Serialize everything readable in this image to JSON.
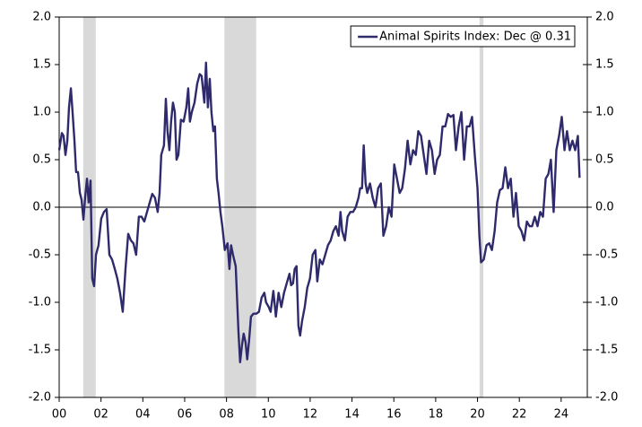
{
  "chart_data": {
    "type": "line",
    "x": [
      2000.0,
      2000.13,
      2000.21,
      2000.3,
      2000.39,
      2000.47,
      2000.56,
      2000.64,
      2000.73,
      2000.81,
      2000.9,
      2000.99,
      2001.07,
      2001.16,
      2001.24,
      2001.33,
      2001.41,
      2001.5,
      2001.58,
      2001.67,
      2001.76,
      2001.88,
      2002.01,
      2002.14,
      2002.27,
      2002.4,
      2002.53,
      2002.66,
      2002.78,
      2002.91,
      2003.04,
      2003.17,
      2003.3,
      2003.43,
      2003.55,
      2003.68,
      2003.81,
      2003.94,
      2004.07,
      2004.2,
      2004.33,
      2004.45,
      2004.58,
      2004.71,
      2004.8,
      2004.88,
      2005.01,
      2005.1,
      2005.18,
      2005.27,
      2005.35,
      2005.44,
      2005.53,
      2005.61,
      2005.7,
      2005.82,
      2005.95,
      2006.08,
      2006.17,
      2006.25,
      2006.34,
      2006.47,
      2006.6,
      2006.72,
      2006.81,
      2006.94,
      2007.02,
      2007.11,
      2007.2,
      2007.28,
      2007.37,
      2007.45,
      2007.54,
      2007.62,
      2007.71,
      2007.8,
      2007.92,
      2008.05,
      2008.14,
      2008.22,
      2008.31,
      2008.44,
      2008.57,
      2008.65,
      2008.74,
      2008.82,
      2008.91,
      2008.99,
      2009.08,
      2009.17,
      2009.29,
      2009.42,
      2009.55,
      2009.68,
      2009.81,
      2009.89,
      2010.02,
      2010.11,
      2010.24,
      2010.36,
      2010.49,
      2010.62,
      2010.75,
      2010.88,
      2011.01,
      2011.09,
      2011.18,
      2011.26,
      2011.35,
      2011.44,
      2011.52,
      2011.61,
      2011.74,
      2011.86,
      2011.99,
      2012.12,
      2012.25,
      2012.34,
      2012.46,
      2012.59,
      2012.72,
      2012.85,
      2012.98,
      2013.11,
      2013.23,
      2013.36,
      2013.45,
      2013.53,
      2013.66,
      2013.79,
      2013.92,
      2014.05,
      2014.18,
      2014.31,
      2014.39,
      2014.48,
      2014.56,
      2014.65,
      2014.73,
      2014.86,
      2014.99,
      2015.12,
      2015.25,
      2015.38,
      2015.5,
      2015.63,
      2015.76,
      2015.89,
      2016.02,
      2016.15,
      2016.28,
      2016.4,
      2016.53,
      2016.66,
      2016.79,
      2016.92,
      2017.05,
      2017.17,
      2017.3,
      2017.43,
      2017.56,
      2017.69,
      2017.82,
      2017.95,
      2018.07,
      2018.2,
      2018.33,
      2018.46,
      2018.59,
      2018.72,
      2018.85,
      2018.97,
      2019.1,
      2019.23,
      2019.36,
      2019.49,
      2019.62,
      2019.74,
      2019.87,
      2020.0,
      2020.09,
      2020.17,
      2020.3,
      2020.43,
      2020.56,
      2020.69,
      2020.82,
      2020.94,
      2021.07,
      2021.2,
      2021.33,
      2021.46,
      2021.59,
      2021.72,
      2021.84,
      2021.97,
      2022.1,
      2022.23,
      2022.36,
      2022.49,
      2022.61,
      2022.74,
      2022.87,
      2023.0,
      2023.13,
      2023.26,
      2023.39,
      2023.51,
      2023.64,
      2023.77,
      2023.9,
      2024.03,
      2024.16,
      2024.28,
      2024.41,
      2024.54,
      2024.67,
      2024.8,
      2024.88
    ],
    "series": [
      {
        "name": "Animal Spirits Index: Dec @ 0.31",
        "color": "#2e2a6b",
        "values": [
          0.6,
          0.78,
          0.75,
          0.55,
          0.7,
          1.05,
          1.25,
          1.0,
          0.7,
          0.37,
          0.37,
          0.15,
          0.08,
          -0.13,
          0.1,
          0.3,
          0.05,
          0.28,
          -0.75,
          -0.83,
          -0.5,
          -0.4,
          -0.12,
          -0.05,
          -0.02,
          -0.5,
          -0.55,
          -0.65,
          -0.75,
          -0.9,
          -1.1,
          -0.65,
          -0.28,
          -0.35,
          -0.38,
          -0.5,
          -0.1,
          -0.1,
          -0.15,
          -0.05,
          0.05,
          0.14,
          0.1,
          -0.05,
          0.15,
          0.55,
          0.65,
          1.14,
          0.8,
          0.6,
          0.9,
          1.1,
          1.0,
          0.5,
          0.55,
          0.92,
          0.9,
          1.05,
          1.25,
          0.9,
          1.0,
          1.1,
          1.3,
          1.4,
          1.38,
          1.1,
          1.52,
          1.05,
          1.35,
          1.0,
          0.8,
          0.85,
          0.3,
          0.15,
          -0.05,
          -0.2,
          -0.45,
          -0.38,
          -0.65,
          -0.4,
          -0.5,
          -0.62,
          -1.3,
          -1.63,
          -1.45,
          -1.33,
          -1.42,
          -1.6,
          -1.4,
          -1.15,
          -1.12,
          -1.12,
          -1.1,
          -0.95,
          -0.9,
          -1.0,
          -1.05,
          -1.1,
          -0.88,
          -1.15,
          -0.9,
          -1.05,
          -0.9,
          -0.8,
          -0.7,
          -0.82,
          -0.8,
          -0.65,
          -0.62,
          -1.25,
          -1.35,
          -1.2,
          -1.05,
          -0.85,
          -0.75,
          -0.5,
          -0.45,
          -0.78,
          -0.55,
          -0.6,
          -0.5,
          -0.4,
          -0.35,
          -0.25,
          -0.2,
          -0.3,
          -0.05,
          -0.25,
          -0.35,
          -0.1,
          -0.05,
          -0.05,
          0.0,
          0.1,
          0.2,
          0.2,
          0.65,
          0.25,
          0.15,
          0.25,
          0.1,
          0.0,
          0.2,
          0.25,
          -0.3,
          -0.2,
          0.0,
          -0.1,
          0.45,
          0.3,
          0.15,
          0.2,
          0.4,
          0.7,
          0.45,
          0.6,
          0.55,
          0.8,
          0.75,
          0.55,
          0.35,
          0.7,
          0.6,
          0.35,
          0.5,
          0.55,
          0.85,
          0.85,
          0.98,
          0.95,
          0.97,
          0.6,
          0.85,
          1.0,
          0.5,
          0.85,
          0.85,
          0.95,
          0.55,
          0.2,
          -0.3,
          -0.58,
          -0.55,
          -0.4,
          -0.38,
          -0.45,
          -0.25,
          0.05,
          0.18,
          0.2,
          0.42,
          0.2,
          0.3,
          -0.1,
          0.15,
          -0.2,
          -0.25,
          -0.35,
          -0.15,
          -0.2,
          -0.2,
          -0.1,
          -0.2,
          -0.05,
          -0.1,
          0.3,
          0.35,
          0.5,
          -0.05,
          0.6,
          0.75,
          0.95,
          0.6,
          0.8,
          0.6,
          0.7,
          0.6,
          0.75,
          0.31
        ]
      }
    ],
    "shaded_periods": [
      [
        2001.15,
        2001.75
      ],
      [
        2007.9,
        2009.42
      ],
      [
        2020.1,
        2020.28
      ]
    ],
    "shade_color": "#d9d9d9",
    "xlim": [
      2000,
      2025.25
    ],
    "xticks": [
      {
        "value": 2000,
        "label": "00"
      },
      {
        "value": 2002,
        "label": "02"
      },
      {
        "value": 2004,
        "label": "04"
      },
      {
        "value": 2006,
        "label": "06"
      },
      {
        "value": 2008,
        "label": "08"
      },
      {
        "value": 2010,
        "label": "10"
      },
      {
        "value": 2012,
        "label": "12"
      },
      {
        "value": 2014,
        "label": "14"
      },
      {
        "value": 2016,
        "label": "16"
      },
      {
        "value": 2018,
        "label": "18"
      },
      {
        "value": 2020,
        "label": "20"
      },
      {
        "value": 2022,
        "label": "22"
      },
      {
        "value": 2024,
        "label": "24"
      }
    ],
    "ylim": [
      -2,
      2
    ],
    "yticks": [
      {
        "value": 2,
        "label": "2.0"
      },
      1.5,
      {
        "value": 1,
        "label": "1.0"
      },
      0.5,
      {
        "value": 0,
        "label": "0.0"
      },
      -0.5,
      {
        "value": -1,
        "label": "-1.0"
      },
      -1.5,
      {
        "value": -2,
        "label": "-2.0"
      }
    ],
    "legend": "upper right"
  }
}
